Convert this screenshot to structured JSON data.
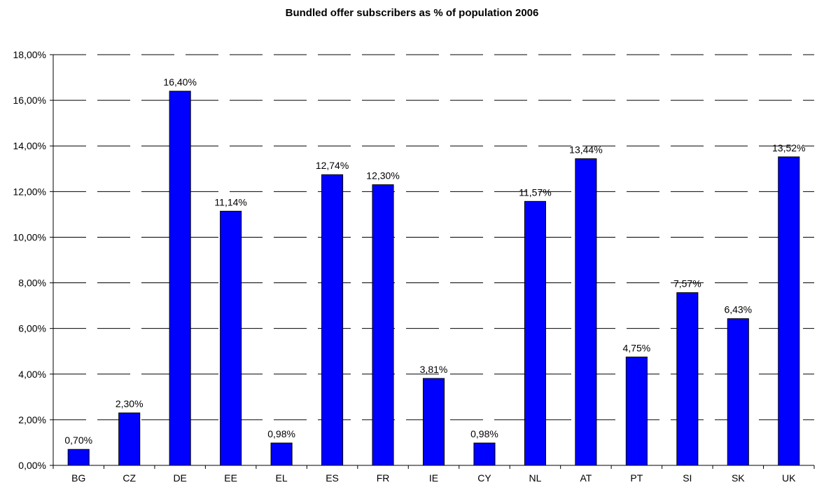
{
  "chart_data": {
    "type": "bar",
    "title": "Bundled offer subscribers as % of population 2006",
    "xlabel": "",
    "ylabel": "",
    "categories": [
      "BG",
      "CZ",
      "DE",
      "EE",
      "EL",
      "ES",
      "FR",
      "IE",
      "CY",
      "NL",
      "AT",
      "PT",
      "SI",
      "SK",
      "UK"
    ],
    "values": [
      0.7,
      2.3,
      16.4,
      11.14,
      0.98,
      12.74,
      12.3,
      3.81,
      0.98,
      11.57,
      13.44,
      4.75,
      7.57,
      6.43,
      13.52
    ],
    "data_labels": [
      "0,70%",
      "2,30%",
      "16,40%",
      "11,14%",
      "0,98%",
      "12,74%",
      "12,30%",
      "3,81%",
      "0,98%",
      "11,57%",
      "13,44%",
      "4,75%",
      "7,57%",
      "6,43%",
      "13,52%"
    ],
    "ylim": [
      0,
      18
    ],
    "yticks": [
      0,
      2,
      4,
      6,
      8,
      10,
      12,
      14,
      16,
      18
    ],
    "ytick_labels": [
      "0,00%",
      "2,00%",
      "4,00%",
      "6,00%",
      "8,00%",
      "10,00%",
      "12,00%",
      "14,00%",
      "16,00%",
      "18,00%"
    ],
    "grid": true,
    "grid_style": "dashed",
    "legend": false,
    "bar_color": "#0000FF",
    "bar_edge_color": "#000000"
  }
}
